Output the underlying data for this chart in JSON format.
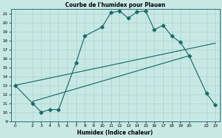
{
  "title": "Courbe de l'humidex pour Plauen",
  "xlabel": "Humidex (Indice chaleur)",
  "xlim": [
    -0.5,
    23.5
  ],
  "ylim": [
    9,
    21.5
  ],
  "xticks": [
    0,
    2,
    3,
    4,
    5,
    6,
    7,
    8,
    9,
    10,
    11,
    12,
    13,
    14,
    15,
    16,
    17,
    18,
    19,
    20,
    22,
    23
  ],
  "yticks": [
    9,
    10,
    11,
    12,
    13,
    14,
    15,
    16,
    17,
    18,
    19,
    20,
    21
  ],
  "bg_color": "#c8e8e4",
  "line_color": "#1a6b6b",
  "curve1_x": [
    0,
    2,
    3,
    4,
    5,
    7,
    8,
    10,
    11,
    12,
    13,
    14,
    15,
    16,
    17,
    18,
    19,
    20,
    22,
    23
  ],
  "curve1_y": [
    13,
    11,
    10,
    10.3,
    10.3,
    15.5,
    18.5,
    19.5,
    21.1,
    21.3,
    20.5,
    21.2,
    21.3,
    19.2,
    19.7,
    18.5,
    17.8,
    16.3,
    12.1,
    10.8
  ],
  "curve2_x": [
    0,
    23
  ],
  "curve2_y": [
    13,
    17.7
  ],
  "curve3_x": [
    2,
    20
  ],
  "curve3_y": [
    11.2,
    16.3
  ]
}
